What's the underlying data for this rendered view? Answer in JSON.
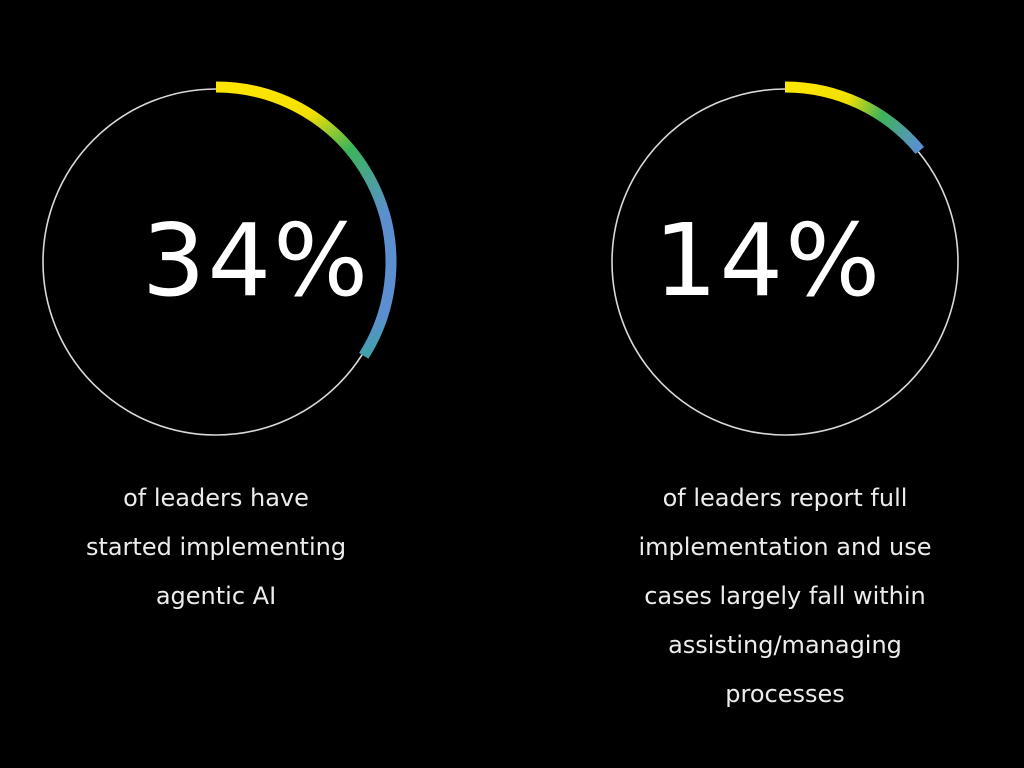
{
  "stats": [
    {
      "value": "34%",
      "percent": 34,
      "caption_lines": [
        "of leaders have",
        "started implementing",
        "agentic AI"
      ]
    },
    {
      "value": "14%",
      "percent": 14,
      "caption_lines": [
        "of leaders report full",
        "implementation and use",
        "cases largely fall within",
        "assisting/managing",
        "processes"
      ]
    }
  ],
  "colors": {
    "background": "#000000",
    "ring_track": "#d9d9d9",
    "gradient": [
      "#ffe600",
      "#3cb45a",
      "#5b8fd0",
      "#3aa0a0"
    ],
    "text": "#ffffff"
  },
  "chart_data": {
    "type": "pie",
    "title": "",
    "categories": [
      "Started implementing agentic AI",
      "Full implementation; use cases within assisting/managing processes"
    ],
    "values": [
      34,
      14
    ],
    "unit": "%",
    "series": [
      {
        "name": "of leaders have started implementing agentic AI",
        "values": [
          34
        ]
      },
      {
        "name": "of leaders report full implementation and use cases largely fall within assisting/managing processes",
        "values": [
          14
        ]
      }
    ],
    "style": "progress-ring (clockwise from 12 o'clock)"
  }
}
